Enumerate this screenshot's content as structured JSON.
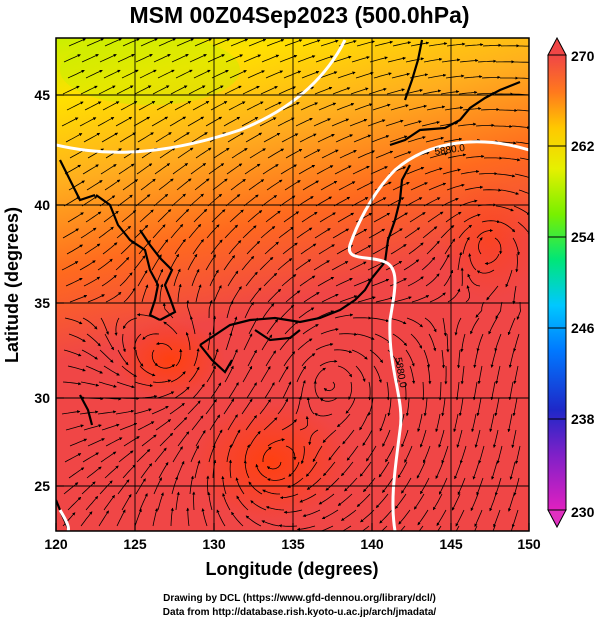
{
  "title": "MSM 00Z04Sep2023 (500.0hPa)",
  "x_axis": {
    "label": "Longitude (degrees)",
    "ticks": [
      "120",
      "125",
      "130",
      "135",
      "140",
      "145",
      "150"
    ],
    "range": [
      120,
      150
    ]
  },
  "y_axis": {
    "label": "Latitude (degrees)",
    "ticks": [
      "25",
      "30",
      "35",
      "40",
      "45"
    ],
    "range": [
      22.4,
      47.6
    ]
  },
  "colorbar": {
    "ticks": [
      "270",
      "262",
      "254",
      "246",
      "238",
      "230"
    ],
    "range": [
      230,
      270
    ],
    "colors": [
      "#d21ec8",
      "#1e28c8",
      "#00c8ff",
      "#00e678",
      "#c8f000",
      "#ffc800",
      "#ff5a1e",
      "#f04646"
    ]
  },
  "contour_labels": [
    "5880.0",
    "5880.0"
  ],
  "credits": {
    "line1": "Drawing by DCL (https://www.gfd-dennou.org/library/dcl/)",
    "line2": "Data from http://database.rish.kyoto-u.ac.jp/arch/jmadata/"
  }
}
